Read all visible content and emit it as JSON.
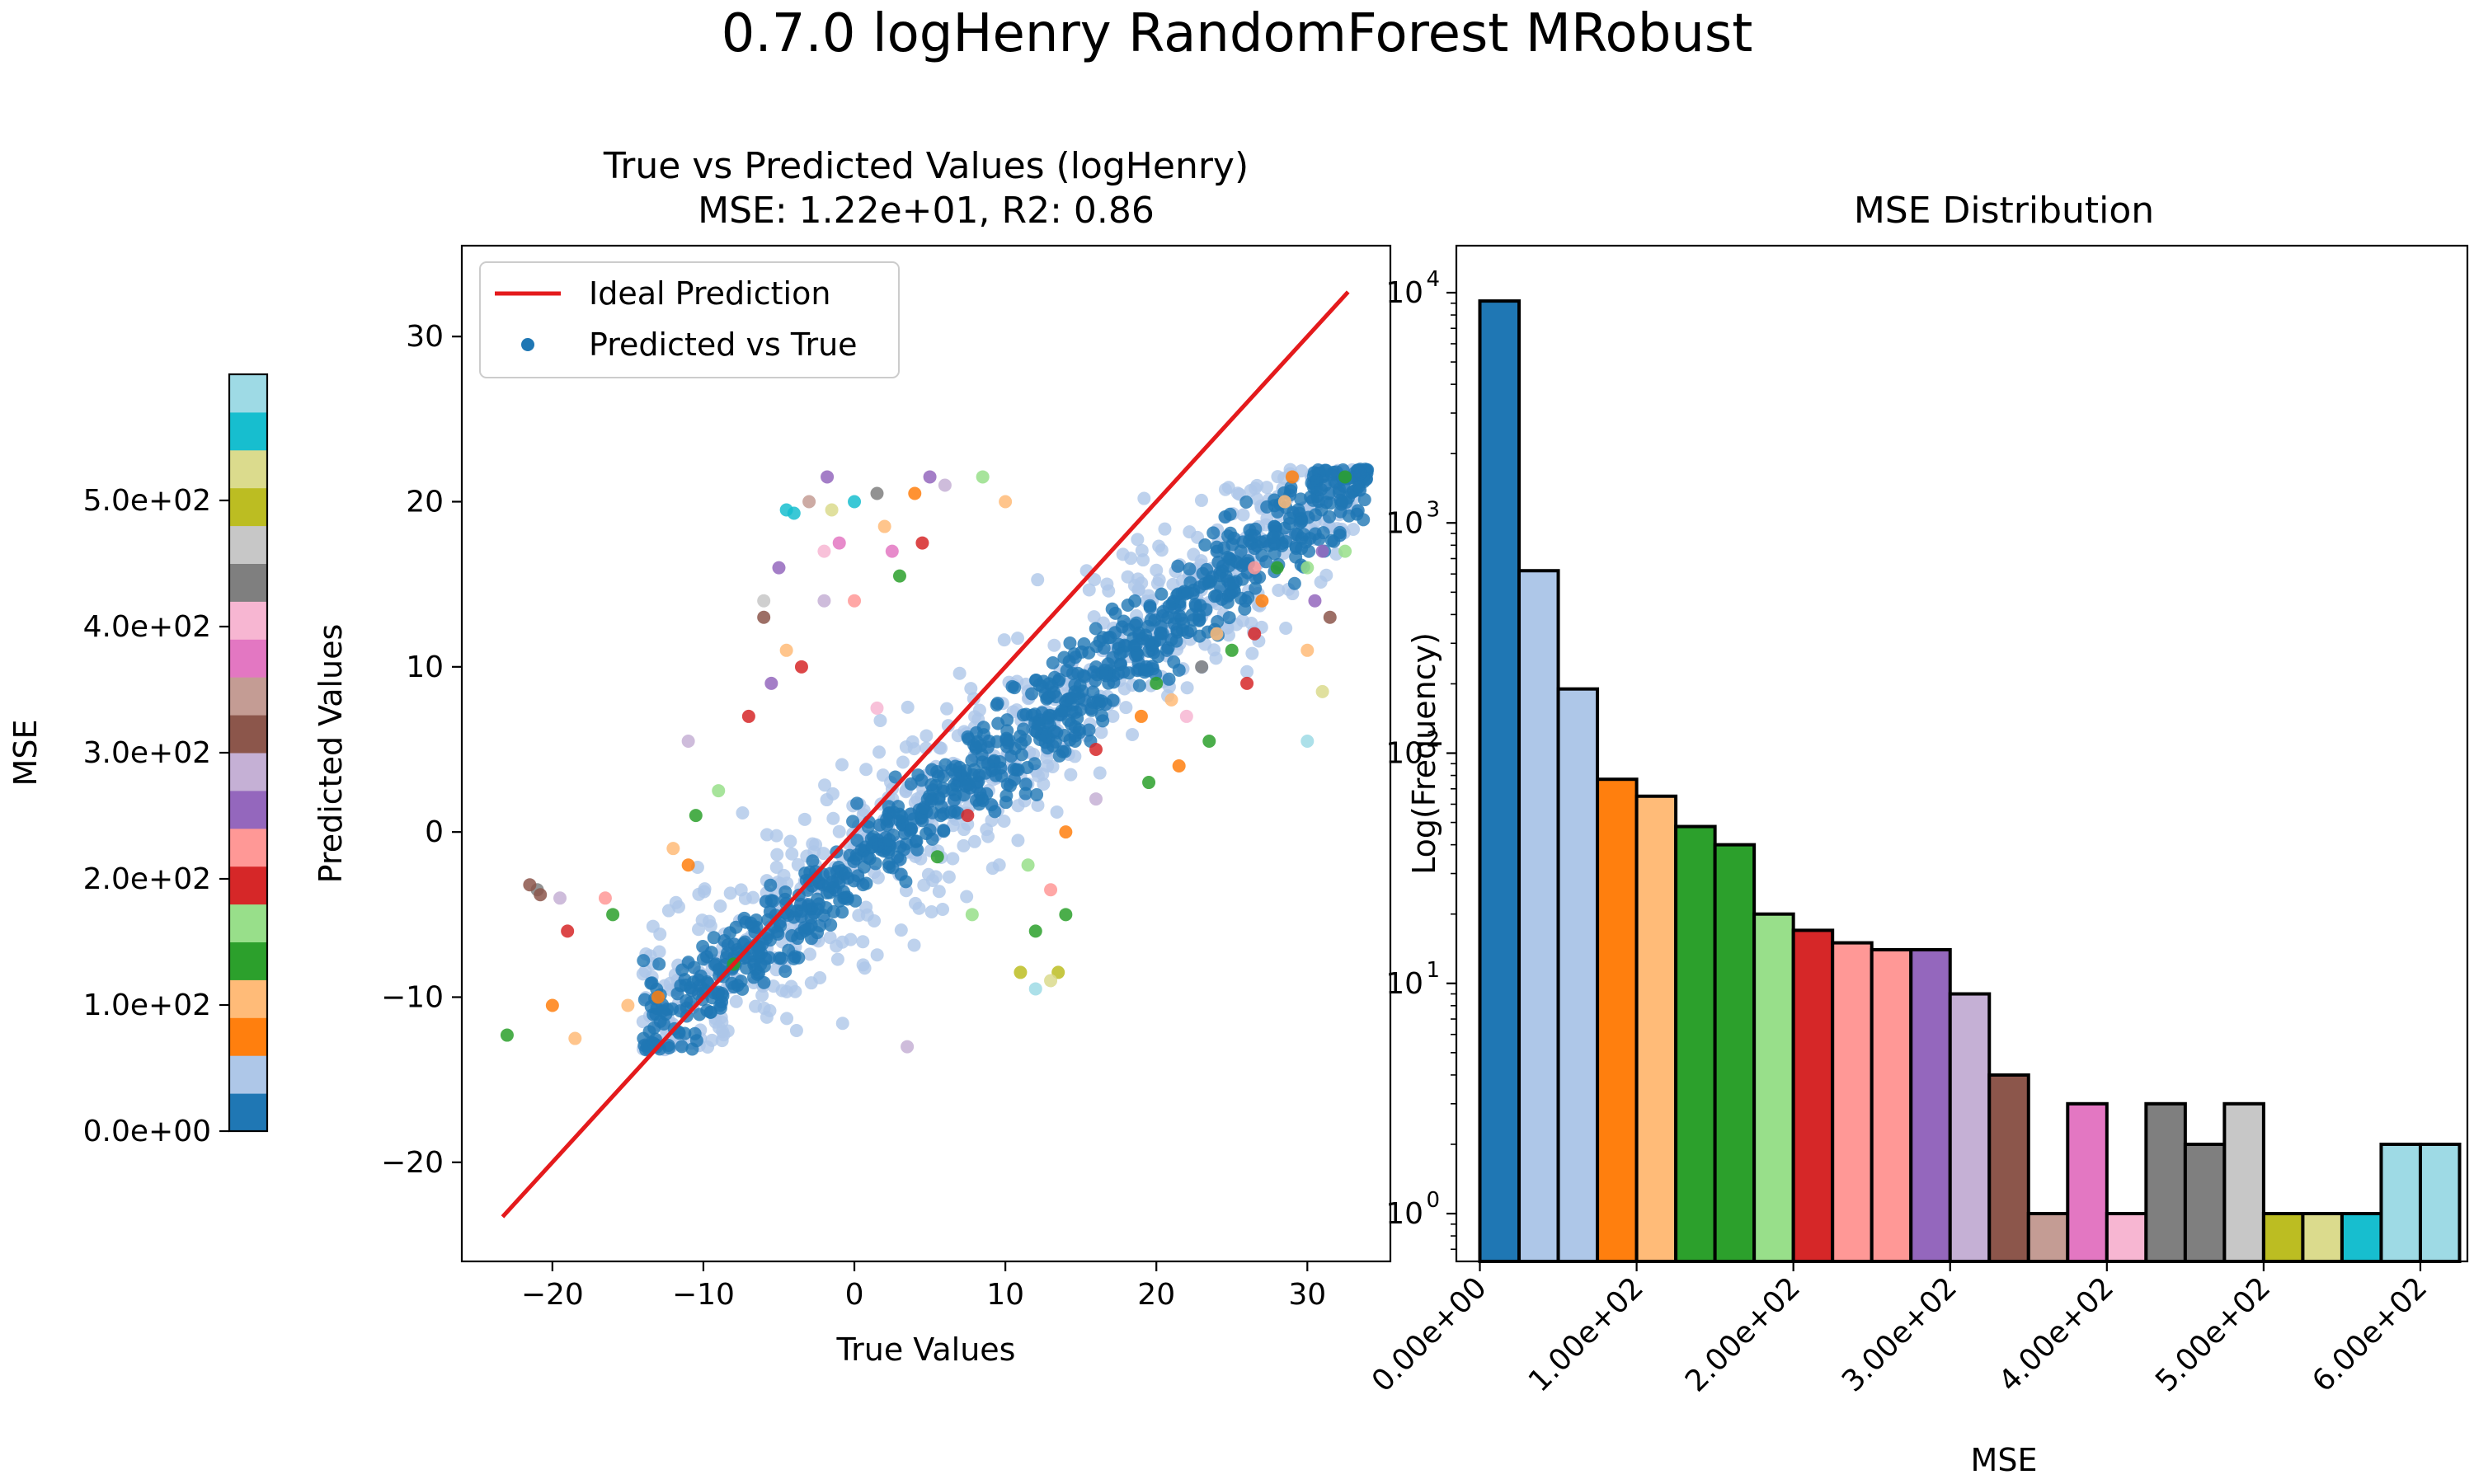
{
  "figure": {
    "suptitle": "0.7.0 logHenry RandomForest MRobust"
  },
  "colors": {
    "ideal_line": "#e41a1c",
    "tab20": [
      "#1f77b4",
      "#aec7e8",
      "#ff7f0e",
      "#ffbb78",
      "#2ca02c",
      "#98df8a",
      "#d62728",
      "#ff9896",
      "#9467bd",
      "#c5b0d5",
      "#8c564b",
      "#c49c94",
      "#e377c2",
      "#f7b6d2",
      "#7f7f7f",
      "#c7c7c7",
      "#bcbd22",
      "#dbdb8d",
      "#17becf",
      "#9edae5"
    ]
  },
  "colorbar": {
    "label": "MSE",
    "tick_labels": [
      "0.0e+00",
      "1.0e+02",
      "2.0e+02",
      "3.0e+02",
      "4.0e+02",
      "5.0e+02"
    ],
    "ticks": [
      0,
      100,
      200,
      300,
      400,
      500
    ],
    "range": [
      0,
      600
    ]
  },
  "chart_data": [
    {
      "type": "scatter",
      "title_line1": "True vs Predicted Values (logHenry)",
      "title_line2": "MSE: 1.22e+01, R2: 0.86",
      "xlabel": "True Values",
      "ylabel": "Predicted Values",
      "xlim": [
        -26,
        35.5
      ],
      "ylim": [
        -26,
        35.5
      ],
      "xticks": [
        -20,
        -10,
        0,
        10,
        20,
        30
      ],
      "yticks": [
        -20,
        -10,
        0,
        10,
        20,
        30
      ],
      "xtick_labels": [
        "−20",
        "−10",
        "0",
        "10",
        "20",
        "30"
      ],
      "ytick_labels": [
        "−20",
        "−10",
        "0",
        "10",
        "20",
        "30"
      ],
      "legend": {
        "position": "top-left",
        "entries": [
          "Ideal Prediction",
          "Predicted vs True"
        ]
      },
      "ideal_line": {
        "x": [
          -23.3,
          32.7
        ],
        "y": [
          -23.3,
          32.7
        ]
      },
      "dense_bands": [
        {
          "color_index": 0,
          "x": [
            -14,
            34
          ],
          "y_slope": 0.72,
          "y_offset": -2.2,
          "spread": 2.6,
          "n": 900,
          "y_cap": 22
        },
        {
          "color_index": 1,
          "x": [
            -14,
            34
          ],
          "y_slope": 0.72,
          "y_offset": -2.2,
          "spread": 5.2,
          "n": 700,
          "y_cap": 22
        }
      ],
      "outliers": [
        {
          "x": -21,
          "y": -3.5,
          "c": 14
        },
        {
          "x": -20.8,
          "y": -3.8,
          "c": 10
        },
        {
          "x": -21.5,
          "y": -3.2,
          "c": 10
        },
        {
          "x": -19.5,
          "y": -4,
          "c": 9
        },
        {
          "x": -23,
          "y": -12.3,
          "c": 4
        },
        {
          "x": -20,
          "y": -10.5,
          "c": 2
        },
        {
          "x": -18.5,
          "y": -12.5,
          "c": 3
        },
        {
          "x": -19,
          "y": -6,
          "c": 6
        },
        {
          "x": -16.5,
          "y": -4,
          "c": 7
        },
        {
          "x": -16,
          "y": -5,
          "c": 4
        },
        {
          "x": -11,
          "y": 5.5,
          "c": 9
        },
        {
          "x": -10.5,
          "y": 1,
          "c": 4
        },
        {
          "x": -11,
          "y": -2,
          "c": 2
        },
        {
          "x": -12,
          "y": -1,
          "c": 3
        },
        {
          "x": -9,
          "y": 2.5,
          "c": 5
        },
        {
          "x": -7,
          "y": 7,
          "c": 6
        },
        {
          "x": -5.5,
          "y": 9,
          "c": 8
        },
        {
          "x": -6,
          "y": 14,
          "c": 15
        },
        {
          "x": -6,
          "y": 13,
          "c": 10
        },
        {
          "x": -5,
          "y": 16,
          "c": 8
        },
        {
          "x": -3,
          "y": 20,
          "c": 11
        },
        {
          "x": -3.5,
          "y": 10,
          "c": 6
        },
        {
          "x": -4.5,
          "y": 11,
          "c": 3
        },
        {
          "x": -2,
          "y": 14,
          "c": 9
        },
        {
          "x": 0,
          "y": 14,
          "c": 7
        },
        {
          "x": -1.5,
          "y": 19.5,
          "c": 17
        },
        {
          "x": 1.5,
          "y": 20.5,
          "c": 14
        },
        {
          "x": 2,
          "y": 18.5,
          "c": 3
        },
        {
          "x": 4,
          "y": 20.5,
          "c": 2
        },
        {
          "x": 5,
          "y": 21.5,
          "c": 8
        },
        {
          "x": 6,
          "y": 21,
          "c": 9
        },
        {
          "x": 4.5,
          "y": 17.5,
          "c": 6
        },
        {
          "x": 3,
          "y": 15.5,
          "c": 4
        },
        {
          "x": 8.5,
          "y": 21.5,
          "c": 5
        },
        {
          "x": 10,
          "y": 20,
          "c": 3
        },
        {
          "x": 0,
          "y": 20,
          "c": 18
        },
        {
          "x": -4.5,
          "y": 19.5,
          "c": 18
        },
        {
          "x": 2.5,
          "y": 17,
          "c": 12
        },
        {
          "x": 16,
          "y": 2,
          "c": 9
        },
        {
          "x": 14,
          "y": -5,
          "c": 4
        },
        {
          "x": 12,
          "y": -6,
          "c": 4
        },
        {
          "x": 13,
          "y": -3.5,
          "c": 7
        },
        {
          "x": 11.5,
          "y": -2,
          "c": 5
        },
        {
          "x": 14,
          "y": 0,
          "c": 2
        },
        {
          "x": 16,
          "y": 5,
          "c": 6
        },
        {
          "x": 19,
          "y": 7,
          "c": 2
        },
        {
          "x": 20,
          "y": 9,
          "c": 4
        },
        {
          "x": 21,
          "y": 8,
          "c": 3
        },
        {
          "x": 22,
          "y": 7,
          "c": 13
        },
        {
          "x": 23,
          "y": 10,
          "c": 14
        },
        {
          "x": 24,
          "y": 12,
          "c": 3
        },
        {
          "x": 25,
          "y": 11,
          "c": 4
        },
        {
          "x": 26,
          "y": 9,
          "c": 6
        },
        {
          "x": 26.5,
          "y": 12,
          "c": 6
        },
        {
          "x": 27,
          "y": 14,
          "c": 2
        },
        {
          "x": 28,
          "y": 16,
          "c": 4
        },
        {
          "x": 30,
          "y": 16,
          "c": 5
        },
        {
          "x": 31,
          "y": 17,
          "c": 8
        },
        {
          "x": 30.5,
          "y": 14,
          "c": 8
        },
        {
          "x": 32.5,
          "y": 17,
          "c": 5
        },
        {
          "x": 31.5,
          "y": 13,
          "c": 10
        },
        {
          "x": 30,
          "y": 11,
          "c": 3
        },
        {
          "x": 31,
          "y": 8.5,
          "c": 17
        },
        {
          "x": 30,
          "y": 5.5,
          "c": 19
        },
        {
          "x": 28.5,
          "y": 20,
          "c": 3
        },
        {
          "x": 29,
          "y": 21.5,
          "c": 2
        },
        {
          "x": 32.5,
          "y": 21.5,
          "c": 4
        },
        {
          "x": 26.5,
          "y": 16,
          "c": 7
        },
        {
          "x": 11,
          "y": -8.5,
          "c": 16
        },
        {
          "x": 12,
          "y": -9.5,
          "c": 19
        },
        {
          "x": 13.5,
          "y": -8.5,
          "c": 16
        },
        {
          "x": 13,
          "y": -9,
          "c": 17
        },
        {
          "x": 3.5,
          "y": -13,
          "c": 9
        },
        {
          "x": -2,
          "y": 17,
          "c": 13
        },
        {
          "x": -1,
          "y": 17.5,
          "c": 12
        },
        {
          "x": -4,
          "y": 19.3,
          "c": 18
        },
        {
          "x": -1.8,
          "y": 21.5,
          "c": 8
        },
        {
          "x": 5.5,
          "y": -1.5,
          "c": 4
        },
        {
          "x": 7.5,
          "y": 1,
          "c": 6
        },
        {
          "x": 7.8,
          "y": -5,
          "c": 5
        },
        {
          "x": 1.5,
          "y": 7.5,
          "c": 13
        },
        {
          "x": 21.5,
          "y": 4,
          "c": 2
        },
        {
          "x": 23.5,
          "y": 5.5,
          "c": 4
        },
        {
          "x": 19.5,
          "y": 3,
          "c": 4
        },
        {
          "x": -8,
          "y": -8,
          "c": 4
        },
        {
          "x": -15,
          "y": -10.5,
          "c": 3
        },
        {
          "x": -13,
          "y": -10,
          "c": 2
        }
      ]
    },
    {
      "type": "bar",
      "title": "MSE Distribution",
      "xlabel": "MSE",
      "ylabel": "Log(Frequency)",
      "yscale": "log",
      "ylim": [
        0.62,
        16000
      ],
      "xlim": [
        -15,
        630
      ],
      "bin_width": 25,
      "bin_starts": [
        0,
        25,
        50,
        75,
        100,
        125,
        150,
        175,
        200,
        225,
        250,
        275,
        300,
        325,
        350,
        375,
        400,
        425,
        450,
        475,
        500,
        525,
        550,
        575
      ],
      "values": [
        9200,
        620,
        190,
        77,
        65,
        48,
        40,
        20,
        17,
        15,
        14,
        14,
        9,
        4,
        1,
        3,
        1,
        3,
        2,
        3,
        1,
        1,
        1,
        2
      ],
      "color_indices": [
        0,
        1,
        1,
        2,
        3,
        4,
        4,
        5,
        6,
        7,
        7,
        8,
        9,
        10,
        11,
        12,
        13,
        14,
        14,
        15,
        16,
        17,
        18,
        19
      ],
      "extra_bar": {
        "start": 600,
        "value": 2,
        "color_index": 19
      },
      "xticks": [
        0,
        100,
        200,
        300,
        400,
        500,
        600
      ],
      "xtick_labels": [
        "0.00e+00",
        "1.00e+02",
        "2.00e+02",
        "3.00e+02",
        "4.00e+02",
        "5.00e+02",
        "6.00e+02"
      ],
      "ytick_exponents": [
        "0",
        "1",
        "2",
        "3",
        "4"
      ],
      "ytick_base": "10"
    }
  ]
}
